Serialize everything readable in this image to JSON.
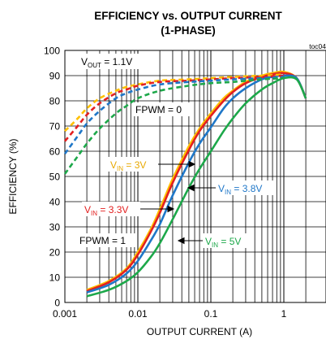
{
  "chart_data": {
    "type": "line",
    "title_line1": "EFFICIENCY vs. OUTPUT CURRENT",
    "title_line2": "(1-PHASE)",
    "figure_id": "toc04",
    "xlabel": "OUTPUT CURRENT (A)",
    "ylabel": "EFFICIENCY (%)",
    "x_scale": "log",
    "xlim": [
      0.001,
      2
    ],
    "ylim": [
      0,
      100
    ],
    "grid": true,
    "x_ticks": [
      0.001,
      0.01,
      0.1,
      1
    ],
    "x_tick_labels": [
      "0.001",
      "0.01",
      "0.1",
      "1"
    ],
    "y_ticks": [
      0,
      10,
      20,
      30,
      40,
      50,
      60,
      70,
      80,
      90,
      100
    ],
    "y_tick_labels": [
      "0",
      "10",
      "20",
      "30",
      "40",
      "50",
      "60",
      "70",
      "80",
      "90",
      "100"
    ],
    "annotations": {
      "vout": {
        "main": "V",
        "sub": "OUT",
        "rest": " = 1.1V"
      },
      "fpwm0": "FPWM = 0",
      "fpwm1": "FPWM = 1",
      "vin3": {
        "main": "V",
        "sub": "IN",
        "rest": " = 3V"
      },
      "vin33": {
        "main": "V",
        "sub": "IN",
        "rest": " = 3.3V"
      },
      "vin38": {
        "main": "V",
        "sub": "IN",
        "rest": " = 3.8V"
      },
      "vin5": {
        "main": "V",
        "sub": "IN",
        "rest": " = 5V"
      }
    },
    "series": [
      {
        "id": "fpwm1_3v",
        "color": "#FFC000",
        "dash": "none",
        "x": [
          0.002,
          0.004,
          0.007,
          0.01,
          0.015,
          0.02,
          0.03,
          0.05,
          0.07,
          0.1,
          0.15,
          0.2,
          0.3,
          0.5,
          0.7,
          1.0,
          1.5,
          2.0
        ],
        "y": [
          5,
          8.5,
          13.5,
          20,
          29,
          37,
          49,
          62,
          69,
          75,
          81,
          84,
          87.5,
          90,
          91,
          91.5,
          89,
          81
        ]
      },
      {
        "id": "fpwm1_33v",
        "color": "#E32020",
        "dash": "none",
        "x": [
          0.002,
          0.004,
          0.007,
          0.01,
          0.015,
          0.02,
          0.03,
          0.05,
          0.07,
          0.1,
          0.15,
          0.2,
          0.3,
          0.5,
          0.7,
          1.0,
          1.5,
          2.0
        ],
        "y": [
          4.5,
          8,
          13,
          19,
          28,
          35.5,
          47.5,
          60.5,
          68,
          74,
          80,
          83.5,
          87,
          89.5,
          90.5,
          91,
          89,
          81
        ]
      },
      {
        "id": "fpwm1_38v",
        "color": "#1F77C8",
        "dash": "none",
        "x": [
          0.002,
          0.004,
          0.007,
          0.01,
          0.015,
          0.02,
          0.03,
          0.05,
          0.07,
          0.1,
          0.15,
          0.2,
          0.3,
          0.5,
          0.7,
          1.0,
          1.5,
          2.0
        ],
        "y": [
          4,
          7,
          11.5,
          16.5,
          24.5,
          31,
          42.5,
          55.5,
          63,
          69.5,
          77,
          81,
          85,
          88.5,
          89.5,
          90,
          89,
          81
        ]
      },
      {
        "id": "fpwm1_5v",
        "color": "#1DA84A",
        "dash": "none",
        "x": [
          0.002,
          0.004,
          0.007,
          0.01,
          0.015,
          0.02,
          0.03,
          0.05,
          0.07,
          0.1,
          0.15,
          0.2,
          0.3,
          0.5,
          0.7,
          1.0,
          1.5,
          2.0
        ],
        "y": [
          2.5,
          5,
          8.5,
          12,
          18,
          23.5,
          33,
          45.5,
          53,
          60,
          68,
          73,
          79,
          84.5,
          87,
          89,
          88.5,
          81
        ]
      },
      {
        "id": "fpwm0_3v",
        "color": "#FFC000",
        "dash": "6,4",
        "x": [
          0.001,
          0.0015,
          0.002,
          0.003,
          0.005,
          0.007,
          0.01,
          0.02,
          0.05,
          0.1,
          0.2,
          0.5,
          1.0
        ],
        "y": [
          68,
          73,
          77,
          81,
          84,
          85.5,
          86.5,
          88,
          88.5,
          89,
          89.5,
          90,
          90.5
        ]
      },
      {
        "id": "fpwm0_33v",
        "color": "#E32020",
        "dash": "6,4",
        "x": [
          0.001,
          0.0015,
          0.002,
          0.003,
          0.005,
          0.007,
          0.01,
          0.02,
          0.05,
          0.1,
          0.2,
          0.5,
          1.0
        ],
        "y": [
          64,
          70,
          74.5,
          79,
          83,
          84.5,
          86,
          87.5,
          88,
          88.5,
          89,
          89.5,
          90
        ]
      },
      {
        "id": "fpwm0_38v",
        "color": "#1F77C8",
        "dash": "6,4",
        "x": [
          0.001,
          0.0015,
          0.002,
          0.003,
          0.005,
          0.007,
          0.01,
          0.02,
          0.05,
          0.1,
          0.2,
          0.5,
          1.0
        ],
        "y": [
          59,
          66,
          71,
          76,
          81,
          83,
          84.5,
          86.5,
          87.5,
          88,
          88.5,
          89,
          89.5
        ]
      },
      {
        "id": "fpwm0_5v",
        "color": "#1DA84A",
        "dash": "6,4",
        "x": [
          0.001,
          0.0015,
          0.002,
          0.003,
          0.005,
          0.007,
          0.01,
          0.02,
          0.05,
          0.1,
          0.2,
          0.5,
          1.0
        ],
        "y": [
          51,
          58,
          63,
          69,
          75,
          78,
          81,
          84,
          86,
          87,
          87.5,
          88.5,
          89
        ]
      }
    ]
  }
}
